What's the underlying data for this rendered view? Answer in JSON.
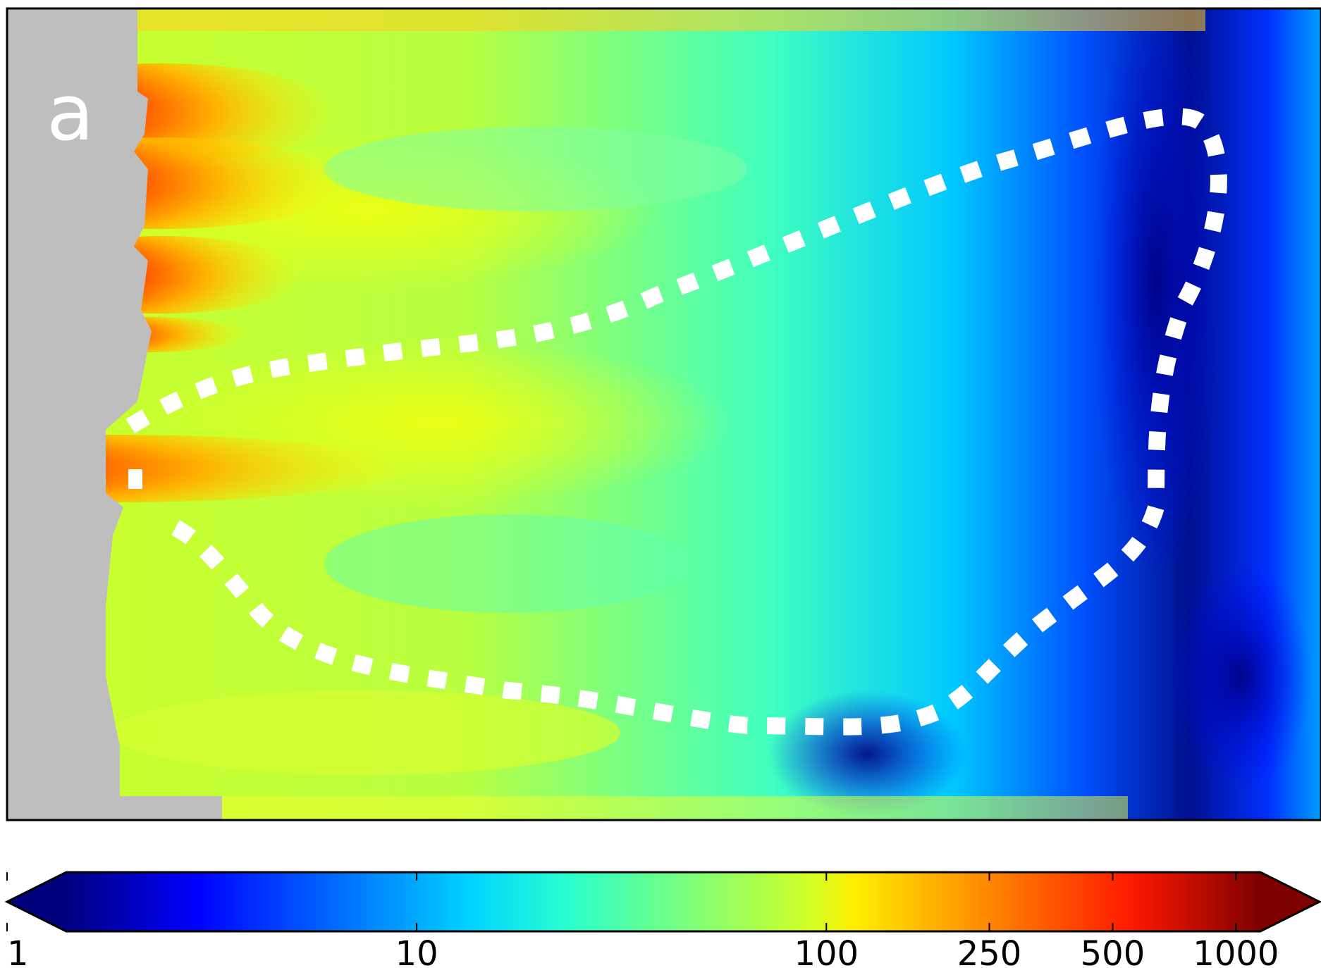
{
  "chart_data": {
    "type": "heatmap",
    "panel_label": "a",
    "colorbar": {
      "scale": "log",
      "colormap": "jet",
      "range": [
        1,
        1600
      ],
      "extend": "both",
      "ticks": [
        1,
        10,
        100,
        250,
        500,
        1000
      ],
      "tick_labels": [
        "1",
        "10",
        "100",
        "250",
        "500",
        "1000"
      ]
    },
    "masked_color": "#bebebe",
    "contour_color": "#ffffff",
    "contour_style": "dashed",
    "title": "",
    "xlabel": "",
    "ylabel": ""
  }
}
